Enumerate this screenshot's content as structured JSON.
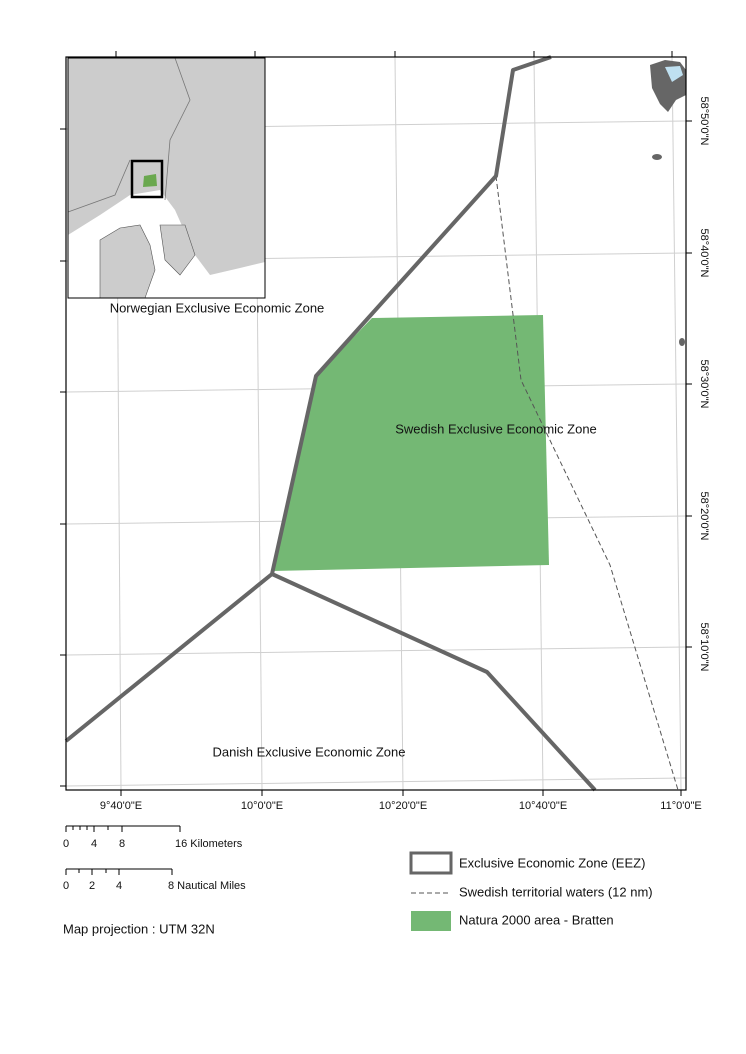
{
  "map": {
    "zone_labels": [
      "Norwegian Exclusive Economic Zone",
      "Swedish Exclusive Economic Zone",
      "Danish Exclusive Economic Zone"
    ],
    "longitude_labels": [
      "9°40'0\"E",
      "10°0'0\"E",
      "10°20'0\"E",
      "10°40'0\"E",
      "11°0'0\"E"
    ],
    "latitude_labels": [
      "58°50'0\"N",
      "58°40'0\"N",
      "58°30'0\"N",
      "58°20'0\"N",
      "58°10'0\"N"
    ],
    "scale_bars": [
      {
        "ticks": [
          "0",
          "4",
          "8"
        ],
        "unit_label": "16 Kilometers"
      },
      {
        "ticks": [
          "0",
          "2",
          "4"
        ],
        "unit_label": "8 Nautical Miles"
      }
    ],
    "legend": [
      "Exclusive Economic Zone (EEZ)",
      "Swedish territorial waters (12 nm)",
      "Natura 2000 area - Bratten"
    ],
    "projection": "Map projection : UTM 32N"
  }
}
